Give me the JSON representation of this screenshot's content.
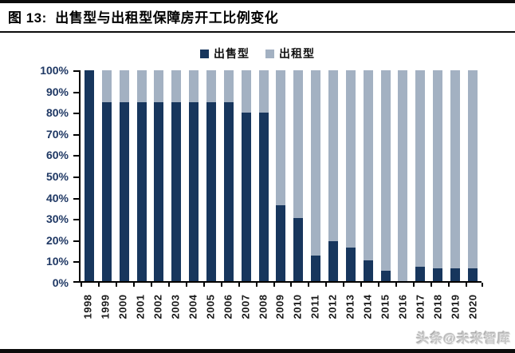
{
  "figure": {
    "title": "图 13:  出售型与出租型保障房开工比例变化",
    "watermark": "头条@未来智库"
  },
  "colors": {
    "sale": "#17365d",
    "rent": "#a3b1c2",
    "axis": "#000000",
    "ytick_text": "#1f3864",
    "xtick_text": "#1a1a1a"
  },
  "legend": {
    "items": [
      {
        "label": "出售型",
        "color": "#17365d"
      },
      {
        "label": "出租型",
        "color": "#a3b1c2"
      }
    ]
  },
  "chart_data": {
    "type": "bar",
    "stacked": true,
    "title": "出售型与出租型保障房开工比例变化",
    "categories": [
      "1998",
      "1999",
      "2000",
      "2001",
      "2002",
      "2003",
      "2004",
      "2005",
      "2006",
      "2007",
      "2008",
      "2009",
      "2010",
      "2011",
      "2012",
      "2013",
      "2014",
      "2015",
      "2016",
      "2017",
      "2018",
      "2019",
      "2020"
    ],
    "series": [
      {
        "name": "出售型",
        "color": "#17365d",
        "values": [
          100,
          85,
          85,
          85,
          85,
          85,
          85,
          85,
          85,
          80,
          80,
          36,
          30,
          12,
          19,
          16,
          10,
          5,
          0,
          7,
          6,
          6,
          6
        ]
      },
      {
        "name": "出租型",
        "color": "#a3b1c2",
        "values": [
          0,
          15,
          15,
          15,
          15,
          15,
          15,
          15,
          15,
          20,
          20,
          64,
          70,
          88,
          81,
          84,
          90,
          95,
          100,
          93,
          94,
          94,
          94
        ]
      }
    ],
    "xlabel": "",
    "ylabel": "",
    "ylim": [
      0,
      100
    ],
    "ytick_step": 10,
    "ytick_labels_top_to_bottom": [
      "100%",
      "90%",
      "80%",
      "70%",
      "60%",
      "50%",
      "40%",
      "30%",
      "20%",
      "10%",
      "0%"
    ],
    "unit": "percent",
    "grid": false,
    "legend_position": "top-center"
  }
}
